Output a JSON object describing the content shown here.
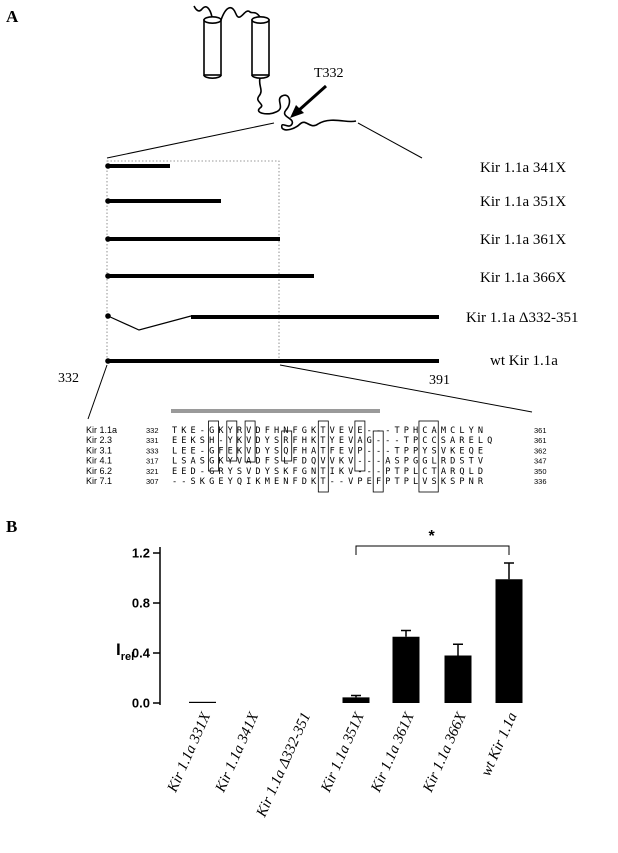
{
  "panel_a": {
    "label": "A",
    "mutation_label": "T332",
    "constructs": [
      {
        "label": "Kir 1.1a 341X"
      },
      {
        "label": "Kir 1.1a 351X"
      },
      {
        "label": "Kir 1.1a 361X"
      },
      {
        "label": "Kir 1.1a 366X"
      },
      {
        "label": "Kir 1.1a Δ332-351"
      },
      {
        "label": "wt Kir 1.1a"
      }
    ],
    "start_label": "332",
    "end_label": "391",
    "alignment": [
      {
        "name": "Kir 1.1a",
        "start": "332",
        "seq": "TKE-GKYRVDFHNFGKTVEVE---TPHCAMCLYN",
        "end": "361"
      },
      {
        "name": "Kir 2.3",
        "start": "331",
        "seq": "EEKSH-YKVDYSRFHKTYEVAG---TPCCSARELQ",
        "end": "361"
      },
      {
        "name": "Kir 3.1",
        "start": "333",
        "seq": "LEE-GFEKVDYSQFHATFEVP---TPPYSVKEQE",
        "end": "362"
      },
      {
        "name": "Kir 4.1",
        "start": "317",
        "seq": "LSASGKYVADFSLFDQVVKV---ASPGGLRDSTV",
        "end": "347"
      },
      {
        "name": "Kir 6.2",
        "start": "321",
        "seq": "EED-GRYSVDYSKFGNTIKV---PTPLCTARQLD",
        "end": "350"
      },
      {
        "name": "Kir 7.1",
        "start": "307",
        "seq": "--SKGEYQIKMENFDKT--VPEFPTPLVSKSPNR",
        "end": "336"
      }
    ]
  },
  "panel_b": {
    "label": "B",
    "significance": "*"
  },
  "chart_data": {
    "type": "bar",
    "ylabel": "I",
    "ylabel_sub": "rel",
    "ylim": [
      0,
      1.2
    ],
    "yticks": [
      "0.0",
      "0.4",
      "0.8",
      "1.2"
    ],
    "categories": [
      "Kir 1.1a 331X",
      "Kir 1.1a 341X",
      "Kir 1.1a Δ332-351",
      "Kir 1.1a 351X",
      "Kir 1.1a 361X",
      "Kir 1.1a 366X",
      "wt Kir 1.1a"
    ],
    "values": [
      0.005,
      0.0,
      0.0,
      0.045,
      0.53,
      0.38,
      0.99
    ],
    "errors": [
      0.0,
      0.0,
      0.0,
      0.015,
      0.05,
      0.09,
      0.13
    ],
    "bar_color": "#000000",
    "significance_pair": [
      "Kir 1.1a 351X",
      "wt Kir 1.1a"
    ]
  }
}
